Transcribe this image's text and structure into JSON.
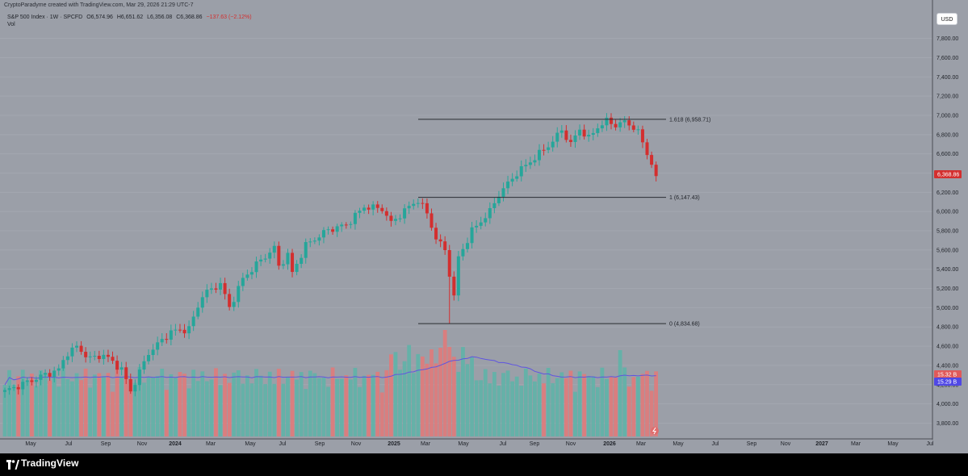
{
  "attribution": "CryptoParadyme created with TradingView.com, Mar 29, 2026 21:29 UTC-7",
  "legend": {
    "symbol": "S&P 500 Index · 1W · SPCFD",
    "open": "O6,574.96",
    "high": "H6,651.62",
    "low": "L6,356.08",
    "close": "C6,368.86",
    "change": "−137.63 (−2.12%)",
    "change_color": "#d32f2f",
    "vol_label": "Vol"
  },
  "currency_button": "USD",
  "brand": {
    "name": "TradingView",
    "logo_icon": "tradingview-logo-icon"
  },
  "colors": {
    "up": "#26a69a",
    "down": "#d32f2f",
    "volume_ma": "#5f55e0"
  },
  "chart_data": {
    "type": "candlestick",
    "interval": "1W",
    "y_axis_ticks": [
      "7,800.00",
      "7,600.00",
      "7,400.00",
      "7,200.00",
      "7,000.00",
      "6,800.00",
      "6,600.00",
      "6,400.00",
      "6,200.00",
      "6,000.00",
      "5,800.00",
      "5,600.00",
      "5,400.00",
      "5,200.00",
      "5,000.00",
      "4,800.00",
      "4,600.00",
      "4,400.00",
      "4,200.00",
      "4,000.00",
      "3,800.00"
    ],
    "y_axis_values": [
      7800,
      7600,
      7400,
      7200,
      7000,
      6800,
      6600,
      6400,
      6200,
      6000,
      5800,
      5600,
      5400,
      5200,
      5000,
      4800,
      4600,
      4400,
      4200,
      4000,
      3800
    ],
    "x_axis_ticks": [
      "May",
      "Jul",
      "Sep",
      "Nov",
      "2024",
      "Mar",
      "May",
      "Jul",
      "Sep",
      "Nov",
      "2025",
      "Mar",
      "May",
      "Jul",
      "Sep",
      "Nov",
      "2026",
      "Mar",
      "May",
      "Jul",
      "Sep",
      "Nov",
      "2027",
      "Mar",
      "May",
      "Jul"
    ],
    "x_axis_bold": [
      "2024",
      "2025",
      "2026",
      "2027"
    ],
    "last_price_label": "6,368.86",
    "volume_labels": [
      "15.32 B",
      "15.29 B"
    ],
    "fib_levels": [
      {
        "label": "1.618 (6,958.71)",
        "price": 6958.71
      },
      {
        "label": "1 (6,147.43)",
        "price": 6147.43
      },
      {
        "label": "0 (4,834.68)",
        "price": 4834.68
      }
    ],
    "price_waypoints": [
      [
        0,
        4130
      ],
      [
        8,
        4285
      ],
      [
        12,
        4355
      ],
      [
        14,
        4535
      ],
      [
        16,
        4590
      ],
      [
        19,
        4470
      ],
      [
        22,
        4510
      ],
      [
        26,
        4360
      ],
      [
        28,
        4130
      ],
      [
        32,
        4530
      ],
      [
        37,
        4750
      ],
      [
        41,
        4780
      ],
      [
        44,
        5130
      ],
      [
        48,
        5250
      ],
      [
        50,
        5000
      ],
      [
        53,
        5300
      ],
      [
        56,
        5450
      ],
      [
        60,
        5620
      ],
      [
        61,
        5430
      ],
      [
        63,
        5550
      ],
      [
        64,
        5360
      ],
      [
        67,
        5650
      ],
      [
        72,
        5810
      ],
      [
        76,
        5860
      ],
      [
        80,
        6050
      ],
      [
        84,
        6030
      ],
      [
        86,
        5880
      ],
      [
        90,
        6050
      ],
      [
        92,
        6120
      ],
      [
        94,
        5980
      ],
      [
        96,
        5720
      ],
      [
        98,
        5600
      ],
      [
        100,
        5110
      ],
      [
        101,
        5520
      ],
      [
        104,
        5800
      ],
      [
        108,
        6000
      ],
      [
        110,
        6180
      ],
      [
        114,
        6400
      ],
      [
        118,
        6560
      ],
      [
        122,
        6730
      ],
      [
        124,
        6850
      ],
      [
        126,
        6700
      ],
      [
        128,
        6860
      ],
      [
        130,
        6760
      ],
      [
        132,
        6880
      ],
      [
        134,
        6940
      ],
      [
        136,
        6900
      ],
      [
        138,
        6930
      ],
      [
        140,
        6880
      ],
      [
        141,
        6820
      ],
      [
        142,
        6720
      ],
      [
        143,
        6600
      ],
      [
        144,
        6507
      ],
      [
        145,
        6369
      ]
    ]
  }
}
